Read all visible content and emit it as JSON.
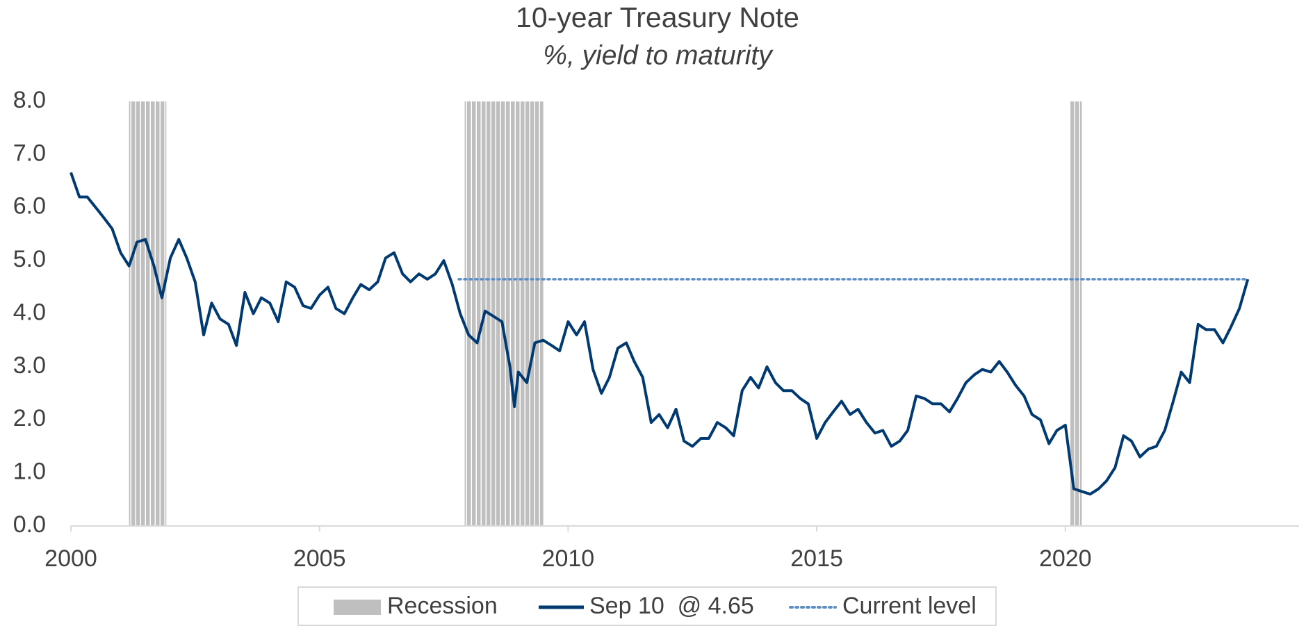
{
  "chart_data": {
    "type": "line",
    "title": "10-year Treasury Note",
    "subtitle": "%, yield to maturity",
    "x": [
      2000,
      2000.17,
      2000.33,
      2000.5,
      2000.67,
      2000.83,
      2001,
      2001.17,
      2001.33,
      2001.5,
      2001.67,
      2001.83,
      2002,
      2002.17,
      2002.33,
      2002.5,
      2002.67,
      2002.83,
      2003,
      2003.17,
      2003.33,
      2003.5,
      2003.67,
      2003.83,
      2004,
      2004.17,
      2004.33,
      2004.5,
      2004.67,
      2004.83,
      2005,
      2005.17,
      2005.33,
      2005.5,
      2005.67,
      2005.83,
      2006,
      2006.17,
      2006.33,
      2006.5,
      2006.67,
      2006.83,
      2007,
      2007.17,
      2007.33,
      2007.5,
      2007.67,
      2007.83,
      2008,
      2008.17,
      2008.33,
      2008.5,
      2008.67,
      2008.83,
      2008.92,
      2009,
      2009.17,
      2009.33,
      2009.5,
      2009.67,
      2009.83,
      2010,
      2010.17,
      2010.33,
      2010.5,
      2010.67,
      2010.83,
      2011,
      2011.17,
      2011.33,
      2011.5,
      2011.67,
      2011.83,
      2012,
      2012.17,
      2012.33,
      2012.5,
      2012.67,
      2012.83,
      2013,
      2013.17,
      2013.33,
      2013.5,
      2013.67,
      2013.83,
      2014,
      2014.17,
      2014.33,
      2014.5,
      2014.67,
      2014.83,
      2015,
      2015.17,
      2015.33,
      2015.5,
      2015.67,
      2015.83,
      2016,
      2016.17,
      2016.33,
      2016.5,
      2016.67,
      2016.83,
      2017,
      2017.17,
      2017.33,
      2017.5,
      2017.67,
      2017.83,
      2018,
      2018.17,
      2018.33,
      2018.5,
      2018.67,
      2018.83,
      2019,
      2019.17,
      2019.33,
      2019.5,
      2019.67,
      2019.83,
      2020,
      2020.17,
      2020.33,
      2020.5,
      2020.67,
      2020.83,
      2021,
      2021.17,
      2021.33,
      2021.5,
      2021.67,
      2021.83,
      2022,
      2022.17,
      2022.33,
      2022.5,
      2022.67,
      2022.83,
      2023,
      2023.17,
      2023.33,
      2023.5,
      2023.67
    ],
    "series": [
      {
        "name": "Sep 10  @ 4.65",
        "color": "#003a70",
        "values": [
          6.66,
          6.2,
          6.2,
          6.0,
          5.8,
          5.6,
          5.15,
          4.9,
          5.35,
          5.4,
          4.9,
          4.3,
          5.05,
          5.4,
          5.05,
          4.6,
          3.6,
          4.2,
          3.9,
          3.8,
          3.4,
          4.4,
          4.0,
          4.3,
          4.2,
          3.85,
          4.6,
          4.5,
          4.15,
          4.1,
          4.35,
          4.5,
          4.1,
          4.0,
          4.3,
          4.55,
          4.45,
          4.6,
          5.05,
          5.15,
          4.75,
          4.6,
          4.75,
          4.65,
          4.75,
          5.0,
          4.55,
          4.0,
          3.6,
          3.45,
          4.05,
          3.95,
          3.85,
          3.0,
          2.25,
          2.9,
          2.7,
          3.45,
          3.5,
          3.4,
          3.3,
          3.85,
          3.6,
          3.85,
          2.95,
          2.5,
          2.8,
          3.35,
          3.45,
          3.1,
          2.8,
          1.95,
          2.1,
          1.85,
          2.2,
          1.6,
          1.5,
          1.65,
          1.65,
          1.95,
          1.85,
          1.7,
          2.55,
          2.8,
          2.6,
          3.0,
          2.7,
          2.55,
          2.55,
          2.4,
          2.3,
          1.65,
          1.95,
          2.15,
          2.35,
          2.1,
          2.2,
          1.95,
          1.75,
          1.8,
          1.5,
          1.6,
          1.8,
          2.45,
          2.4,
          2.3,
          2.3,
          2.15,
          2.4,
          2.7,
          2.85,
          2.95,
          2.9,
          3.1,
          2.9,
          2.65,
          2.45,
          2.1,
          2.0,
          1.55,
          1.8,
          1.9,
          0.7,
          0.65,
          0.6,
          0.7,
          0.85,
          1.1,
          1.7,
          1.6,
          1.3,
          1.45,
          1.5,
          1.8,
          2.35,
          2.9,
          2.7,
          3.8,
          3.7,
          3.7,
          3.45,
          3.75,
          4.1,
          4.65
        ]
      }
    ],
    "recession": {
      "name": "Recession",
      "color": "#bfbfbf",
      "spans": [
        [
          2001.17,
          2001.92
        ],
        [
          2007.92,
          2009.5
        ],
        [
          2020.08,
          2020.33
        ]
      ]
    },
    "current_level": {
      "name": "Current level",
      "color": "#5b8fc7",
      "value": 4.65,
      "start": 2007.8
    },
    "xlim": [
      2000,
      2024.7
    ],
    "xticks": [
      2000,
      2005,
      2010,
      2015,
      2020
    ],
    "ylim": [
      0,
      8
    ],
    "yticks": [
      {
        "value": 0,
        "label": "0.0"
      },
      {
        "value": 1,
        "label": "1.0"
      },
      {
        "value": 2,
        "label": "2.0"
      },
      {
        "value": 3,
        "label": "3.0"
      },
      {
        "value": 4,
        "label": "4.0"
      },
      {
        "value": 5,
        "label": "5.0"
      },
      {
        "value": 6,
        "label": "6.0"
      },
      {
        "value": 7,
        "label": "7.0"
      },
      {
        "value": 8,
        "label": "8.0"
      }
    ]
  }
}
